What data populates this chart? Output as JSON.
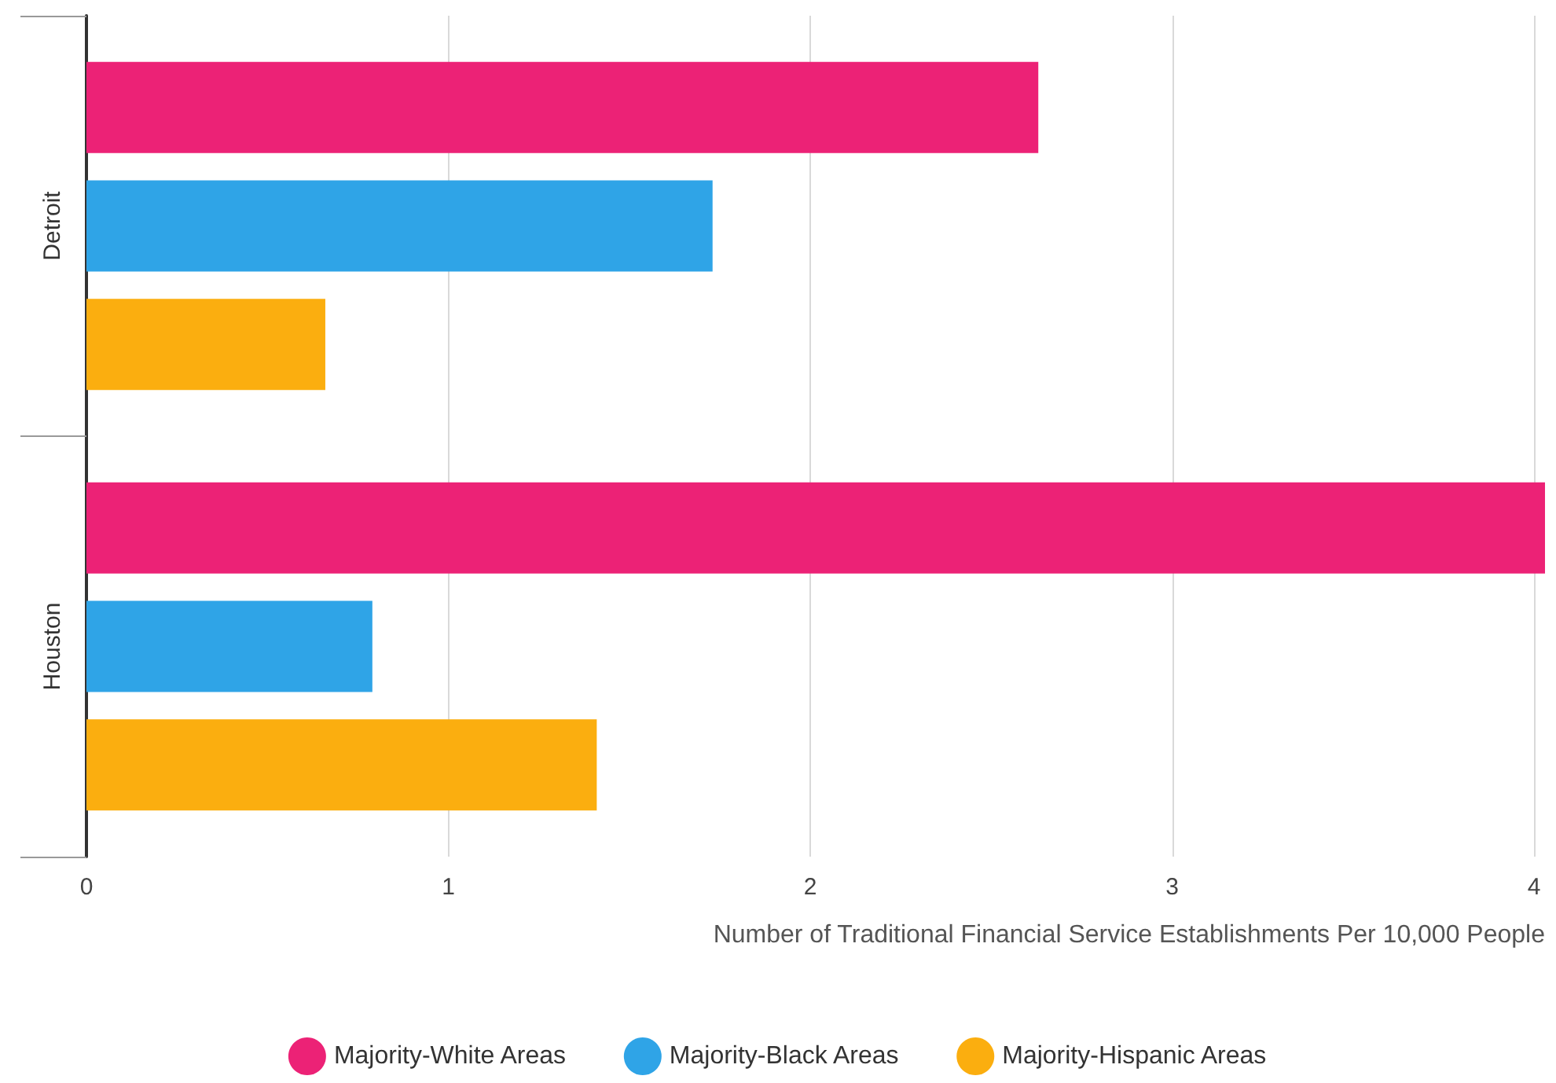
{
  "chart_data": {
    "type": "bar",
    "orientation": "horizontal",
    "xlabel": "Number of Traditional Financial Service Establishments Per 10,000 People",
    "categories": [
      "Detroit",
      "Houston"
    ],
    "series": [
      {
        "name": "Majority-White Areas",
        "color": "#ec2276",
        "values": [
          2.63,
          4.03
        ]
      },
      {
        "name": "Majority-Black Areas",
        "color": "#2fa4e7",
        "values": [
          1.73,
          0.79
        ]
      },
      {
        "name": "Majority-Hispanic Areas",
        "color": "#fbae0f",
        "values": [
          0.66,
          1.41
        ]
      }
    ],
    "xlim": [
      0,
      4.03
    ],
    "xticks": [
      0,
      1,
      2,
      3,
      4
    ],
    "grid": "x",
    "legend": "bottom"
  }
}
